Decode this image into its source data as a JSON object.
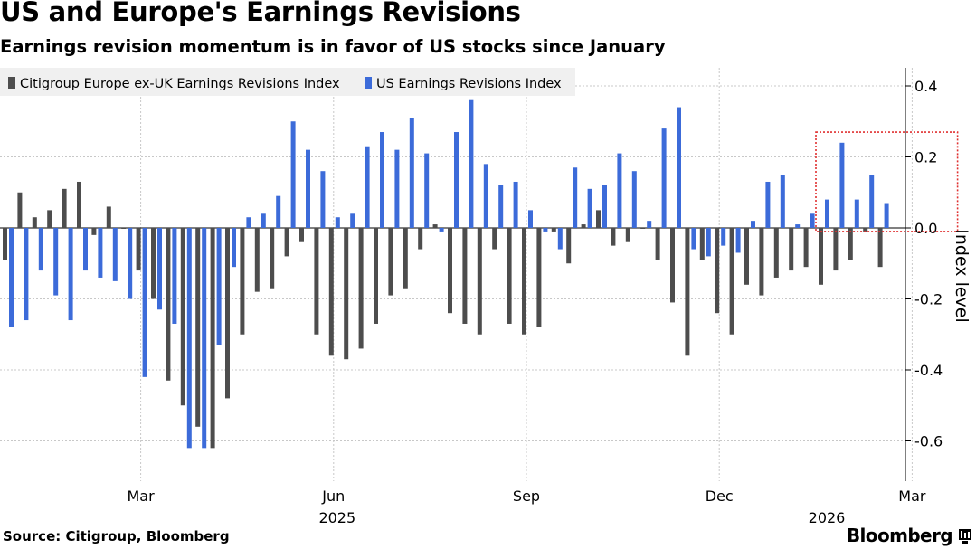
{
  "header": {
    "title": "US and Europe's Earnings Revisions",
    "subtitle": "Earnings revision momentum is in favor of US stocks since January"
  },
  "footer": {
    "source": "Source: Citigroup, Bloomberg",
    "brand": "Bloomberg",
    "brand_icon": "bloomberg-terminal-icon"
  },
  "colors": {
    "europe": "#4d4d4d",
    "us": "#3c6bd9",
    "highlight": "#e03030",
    "grid": "#c8c8c8"
  },
  "chart_data": {
    "type": "bar",
    "title": "US and Europe's Earnings Revisions",
    "subtitle": "Earnings revision momentum is in favor of US stocks since January",
    "ylabel": "Index level",
    "xlabel": "",
    "ylim": [
      -0.7,
      0.45
    ],
    "yticks": [
      0.4,
      0.2,
      0.0,
      -0.2,
      -0.4,
      -0.6
    ],
    "ytick_labels": [
      "0.4",
      "0.2",
      "0.0",
      "-0.2",
      "-0.4",
      "-0.6"
    ],
    "y_axis_side": "right",
    "grid": true,
    "legend_position": "top-left",
    "x_tick_labels": [
      {
        "label": "Mar",
        "index": 9
      },
      {
        "label": "Jun",
        "index": 22
      },
      {
        "label": "Sep",
        "index": 35
      },
      {
        "label": "Dec",
        "index": 48
      },
      {
        "label": "Mar",
        "index": 61
      }
    ],
    "x_year_labels": [
      {
        "label": "2025",
        "index": 22
      },
      {
        "label": "2026",
        "index": 55
      }
    ],
    "highlight_box": {
      "from_index": 55,
      "to_index": 64,
      "y_top": 0.27,
      "y_bottom": -0.01
    },
    "series": [
      {
        "name": "Citigroup Europe ex-UK Earnings Revisions Index",
        "key": "europe",
        "values": [
          -0.09,
          0.1,
          0.03,
          0.05,
          0.11,
          0.13,
          -0.02,
          0.06,
          0.0,
          -0.12,
          -0.2,
          -0.43,
          -0.5,
          -0.56,
          -0.62,
          -0.48,
          -0.3,
          -0.18,
          -0.17,
          -0.08,
          -0.04,
          -0.3,
          -0.36,
          -0.37,
          -0.34,
          -0.27,
          -0.19,
          -0.17,
          -0.06,
          0.01,
          -0.24,
          -0.27,
          -0.3,
          -0.06,
          -0.27,
          -0.3,
          -0.28,
          -0.01,
          -0.1,
          0.01,
          0.05,
          -0.05,
          -0.04,
          0.0,
          -0.09,
          -0.21,
          -0.36,
          -0.09,
          -0.24,
          -0.3,
          -0.16,
          -0.19,
          -0.14,
          -0.12,
          -0.11,
          -0.16,
          -0.12,
          -0.09,
          -0.01,
          -0.11
        ]
      },
      {
        "name": "US Earnings Revisions Index",
        "key": "us",
        "values": [
          -0.28,
          -0.26,
          -0.12,
          -0.19,
          -0.26,
          -0.12,
          -0.14,
          -0.15,
          -0.2,
          -0.42,
          -0.23,
          -0.27,
          -0.62,
          -0.62,
          -0.33,
          -0.11,
          0.03,
          0.04,
          0.09,
          0.3,
          0.22,
          0.16,
          0.03,
          0.04,
          0.23,
          0.27,
          0.22,
          0.31,
          0.21,
          -0.01,
          0.27,
          0.36,
          0.18,
          0.12,
          0.13,
          0.05,
          -0.01,
          -0.06,
          0.17,
          0.11,
          0.12,
          0.21,
          0.16,
          0.02,
          0.28,
          0.34,
          -0.06,
          -0.08,
          -0.05,
          -0.07,
          0.02,
          0.13,
          0.15,
          0.01,
          0.04,
          0.08,
          0.24,
          0.08,
          0.15,
          0.07
        ]
      }
    ]
  }
}
